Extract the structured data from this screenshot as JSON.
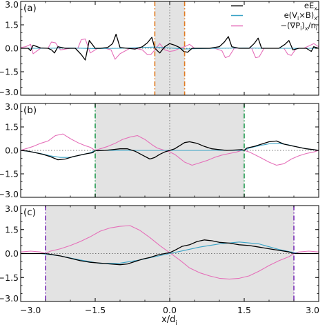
{
  "chart_data": {
    "type": "line",
    "xlabel": "x/d_i",
    "xlim": [
      -3.0,
      3.0
    ],
    "xticks": [
      -3.0,
      -1.5,
      0.0,
      1.5,
      3.0
    ],
    "xtick_labels": [
      "−3.0",
      "−1.5",
      "0.0",
      "1.5",
      "3.0"
    ],
    "ylim": [
      -3.0,
      3.0
    ],
    "yticks": [
      -3.0,
      -1.5,
      0.0,
      1.5,
      3.0
    ],
    "ytick_labels": [
      "−3.0",
      "−1.5",
      "0.0",
      "1.5",
      "3.0"
    ],
    "colors": {
      "eEx": "#000000",
      "vxb": "#3aa3c6",
      "grad": "#e56fb9",
      "shade": "#e3e3e3",
      "zero": "#777777"
    },
    "legend": {
      "placement": "top-right of panel (a)",
      "entries": [
        {
          "series": "eEx",
          "label": "eE_x",
          "main": "eE",
          "sub": "x"
        },
        {
          "series": "vxb",
          "label": "e(V_i×B)_x",
          "main": "e(V",
          "sub1": "i",
          "mid": "×B)",
          "sub2": "x"
        },
        {
          "series": "grad",
          "label": "−(∇P_i)_x/n_i",
          "main": "−(∇P",
          "sub1": "i",
          "mid": ")",
          "sub2": "x",
          "tail": "/n",
          "sub3": "i"
        }
      ]
    },
    "panels": [
      {
        "label": "(a)",
        "shade": [
          -0.3,
          0.3
        ],
        "marker_color": "#e07b22",
        "markers": [
          -0.3,
          0.3
        ],
        "series": {
          "eEx": {
            "x": [
              -3.0,
              -2.85,
              -2.8,
              -2.75,
              -2.6,
              -2.45,
              -2.38,
              -2.32,
              -2.25,
              -2.1,
              -1.9,
              -1.78,
              -1.7,
              -1.62,
              -1.5,
              -1.4,
              -1.25,
              -1.15,
              -1.08,
              -1.0,
              -0.85,
              -0.7,
              -0.55,
              -0.45,
              -0.36,
              -0.3,
              -0.2,
              -0.1,
              0.0,
              0.1,
              0.2,
              0.28,
              0.36,
              0.45,
              0.6,
              0.8,
              1.0,
              1.1,
              1.18,
              1.25,
              1.4,
              1.6,
              1.7,
              1.78,
              1.85,
              2.0,
              2.2,
              2.32,
              2.4,
              2.48,
              2.6,
              2.75,
              2.85,
              2.9,
              3.0
            ],
            "y": [
              0.0,
              0.0,
              -0.15,
              0.2,
              0.02,
              0.0,
              -0.1,
              -0.3,
              0.1,
              0.0,
              0.0,
              -0.4,
              -0.75,
              0.5,
              0.0,
              0.0,
              0.05,
              0.3,
              0.9,
              0.05,
              0.0,
              -0.05,
              0.1,
              0.35,
              0.7,
              0.0,
              -0.3,
              0.1,
              0.3,
              0.2,
              0.05,
              -0.2,
              -0.25,
              0.0,
              0.0,
              0.0,
              0.1,
              0.4,
              0.75,
              0.1,
              0.0,
              0.0,
              0.3,
              0.65,
              0.0,
              0.0,
              0.0,
              0.25,
              0.5,
              -0.1,
              0.0,
              0.0,
              -0.2,
              0.1,
              0.0
            ]
          },
          "vxb": {
            "x": [
              -3.0,
              -2.5,
              -2.0,
              -1.5,
              -1.0,
              -0.6,
              -0.3,
              0.0,
              0.3,
              0.6,
              1.0,
              1.5,
              2.0,
              2.5,
              3.0
            ],
            "y": [
              0.0,
              0.0,
              0.02,
              -0.02,
              0.0,
              0.05,
              0.08,
              0.02,
              -0.05,
              -0.02,
              0.0,
              0.02,
              0.0,
              0.0,
              0.0
            ]
          },
          "grad": {
            "x": [
              -3.0,
              -2.9,
              -2.8,
              -2.75,
              -2.6,
              -2.45,
              -2.38,
              -2.3,
              -2.2,
              -2.0,
              -1.85,
              -1.78,
              -1.7,
              -1.6,
              -1.45,
              -1.3,
              -1.18,
              -1.1,
              -1.0,
              -0.8,
              -0.7,
              -0.55,
              -0.45,
              -0.38,
              -0.3,
              -0.2,
              -0.1,
              0.0,
              0.1,
              0.2,
              0.3,
              0.4,
              0.5,
              0.7,
              0.9,
              1.05,
              1.12,
              1.2,
              1.3,
              1.5,
              1.65,
              1.73,
              1.8,
              1.9,
              2.1,
              2.3,
              2.38,
              2.45,
              2.55,
              2.7,
              2.8,
              2.9,
              3.0
            ],
            "y": [
              0.05,
              0.1,
              0.25,
              -0.35,
              0.0,
              0.0,
              0.4,
              0.35,
              -0.1,
              0.0,
              0.0,
              0.55,
              0.6,
              -0.3,
              0.0,
              0.0,
              -0.1,
              -0.7,
              -0.35,
              0.0,
              0.0,
              -0.1,
              -0.4,
              -0.4,
              -0.1,
              0.3,
              -0.1,
              -0.2,
              -0.15,
              0.0,
              0.1,
              0.25,
              0.0,
              0.0,
              0.0,
              -0.15,
              -0.6,
              -0.5,
              0.0,
              0.0,
              0.0,
              -0.6,
              -0.55,
              0.0,
              0.0,
              0.0,
              -0.4,
              -0.45,
              0.0,
              0.0,
              0.15,
              0.3,
              0.1
            ]
          }
        }
      },
      {
        "label": "(b)",
        "shade": [
          -1.5,
          1.5
        ],
        "marker_color": "#1f9a4e",
        "markers": [
          -1.5,
          1.5
        ],
        "series": {
          "eEx": {
            "x": [
              -3.0,
              -2.85,
              -2.7,
              -2.55,
              -2.4,
              -2.25,
              -2.1,
              -1.95,
              -1.8,
              -1.65,
              -1.55,
              -1.5,
              -1.45,
              -1.3,
              -1.15,
              -1.0,
              -0.85,
              -0.7,
              -0.55,
              -0.4,
              -0.3,
              -0.2,
              -0.1,
              0.0,
              0.1,
              0.2,
              0.3,
              0.4,
              0.55,
              0.7,
              0.85,
              1.0,
              1.15,
              1.3,
              1.45,
              1.5,
              1.55,
              1.7,
              1.85,
              2.0,
              2.15,
              2.3,
              2.45,
              2.6,
              2.75,
              2.9,
              3.0
            ],
            "y": [
              0.0,
              -0.05,
              -0.15,
              -0.25,
              -0.4,
              -0.6,
              -0.55,
              -0.4,
              -0.3,
              -0.2,
              -0.15,
              0.0,
              -0.02,
              0.0,
              0.05,
              0.1,
              0.1,
              -0.05,
              -0.3,
              -0.55,
              -0.45,
              -0.25,
              -0.1,
              0.0,
              0.1,
              0.3,
              0.5,
              0.55,
              0.45,
              0.25,
              0.1,
              0.05,
              0.0,
              0.02,
              0.05,
              0.0,
              0.15,
              0.25,
              0.4,
              0.55,
              0.6,
              0.4,
              0.3,
              0.2,
              0.1,
              0.05,
              0.0
            ]
          },
          "vxb": {
            "x": [
              -3.0,
              -2.8,
              -2.6,
              -2.4,
              -2.2,
              -2.0,
              -1.8,
              -1.6,
              -1.5,
              -1.4,
              -1.0,
              -0.5,
              0.0,
              0.5,
              1.0,
              1.4,
              1.5,
              1.6,
              1.8,
              2.0,
              2.2,
              2.4,
              2.6,
              2.8,
              3.0
            ],
            "y": [
              0.0,
              -0.08,
              -0.2,
              -0.35,
              -0.45,
              -0.45,
              -0.3,
              -0.15,
              0.0,
              0.0,
              0.0,
              0.0,
              0.0,
              0.0,
              0.0,
              0.0,
              0.0,
              0.15,
              0.3,
              0.42,
              0.45,
              0.35,
              0.2,
              0.08,
              0.0
            ]
          },
          "grad": {
            "x": [
              -3.0,
              -2.9,
              -2.75,
              -2.6,
              -2.45,
              -2.3,
              -2.15,
              -2.0,
              -1.85,
              -1.7,
              -1.6,
              -1.5,
              -1.4,
              -1.25,
              -1.1,
              -0.95,
              -0.8,
              -0.65,
              -0.5,
              -0.35,
              -0.25,
              -0.1,
              0.0,
              0.1,
              0.2,
              0.3,
              0.45,
              0.6,
              0.75,
              0.9,
              1.05,
              1.2,
              1.35,
              1.45,
              1.5,
              1.6,
              1.7,
              1.85,
              2.0,
              2.15,
              2.3,
              2.45,
              2.6,
              2.75,
              2.9,
              3.0
            ],
            "y": [
              0.0,
              0.1,
              0.25,
              0.45,
              0.6,
              0.95,
              1.05,
              0.75,
              0.5,
              0.3,
              0.2,
              0.0,
              0.1,
              0.25,
              0.45,
              0.7,
              0.85,
              0.95,
              0.7,
              0.35,
              0.15,
              0.0,
              -0.1,
              -0.25,
              -0.5,
              -0.75,
              -0.95,
              -0.8,
              -0.65,
              -0.45,
              -0.3,
              -0.2,
              -0.1,
              0.0,
              0.0,
              -0.1,
              -0.25,
              -0.5,
              -0.75,
              -0.95,
              -0.85,
              -0.55,
              -0.35,
              -0.2,
              -0.1,
              0.0
            ]
          }
        }
      },
      {
        "label": "(c)",
        "shade": [
          -2.5,
          2.5
        ],
        "marker_color": "#7a2fb8",
        "markers": [
          -2.5,
          2.5
        ],
        "series": {
          "eEx": {
            "x": [
              -3.0,
              -2.6,
              -2.5,
              -2.4,
              -2.2,
              -2.0,
              -1.8,
              -1.6,
              -1.4,
              -1.2,
              -1.0,
              -0.85,
              -0.7,
              -0.55,
              -0.4,
              -0.25,
              -0.1,
              0.0,
              0.1,
              0.25,
              0.4,
              0.55,
              0.7,
              0.85,
              1.0,
              1.2,
              1.4,
              1.6,
              1.8,
              2.0,
              2.2,
              2.4,
              2.5,
              2.6,
              2.8,
              3.0
            ],
            "y": [
              0.0,
              0.0,
              0.0,
              -0.05,
              -0.15,
              -0.3,
              -0.45,
              -0.55,
              -0.6,
              -0.65,
              -0.7,
              -0.65,
              -0.5,
              -0.35,
              -0.25,
              -0.1,
              0.0,
              0.05,
              0.2,
              0.45,
              0.55,
              0.75,
              0.85,
              0.8,
              0.7,
              0.65,
              0.55,
              0.5,
              0.4,
              0.3,
              0.2,
              0.1,
              0.0,
              0.0,
              0.0,
              0.0
            ]
          },
          "vxb": {
            "x": [
              -3.0,
              -2.6,
              -2.2,
              -1.8,
              -1.4,
              -1.0,
              -0.6,
              -0.3,
              0.0,
              0.3,
              0.6,
              1.0,
              1.4,
              1.8,
              2.2,
              2.6,
              3.0
            ],
            "y": [
              0.0,
              0.0,
              -0.15,
              -0.4,
              -0.62,
              -0.6,
              -0.4,
              -0.2,
              0.0,
              0.2,
              0.4,
              0.6,
              0.72,
              0.6,
              0.25,
              0.0,
              0.0
            ]
          },
          "grad": {
            "x": [
              -3.0,
              -2.8,
              -2.6,
              -2.5,
              -2.4,
              -2.2,
              -2.0,
              -1.8,
              -1.6,
              -1.4,
              -1.2,
              -1.0,
              -0.8,
              -0.6,
              -0.4,
              -0.2,
              0.0,
              0.2,
              0.4,
              0.6,
              0.8,
              1.0,
              1.2,
              1.4,
              1.6,
              1.8,
              2.0,
              2.2,
              2.4,
              2.5,
              2.6,
              2.8,
              3.0
            ],
            "y": [
              0.1,
              0.15,
              0.1,
              0.0,
              0.15,
              0.3,
              0.5,
              0.75,
              1.05,
              1.4,
              1.6,
              1.7,
              1.75,
              1.45,
              1.0,
              0.5,
              0.05,
              -0.4,
              -0.9,
              -1.2,
              -1.4,
              -1.55,
              -1.6,
              -1.55,
              -1.4,
              -1.1,
              -0.75,
              -0.45,
              -0.2,
              0.0,
              0.1,
              0.15,
              0.1
            ]
          }
        }
      }
    ]
  }
}
